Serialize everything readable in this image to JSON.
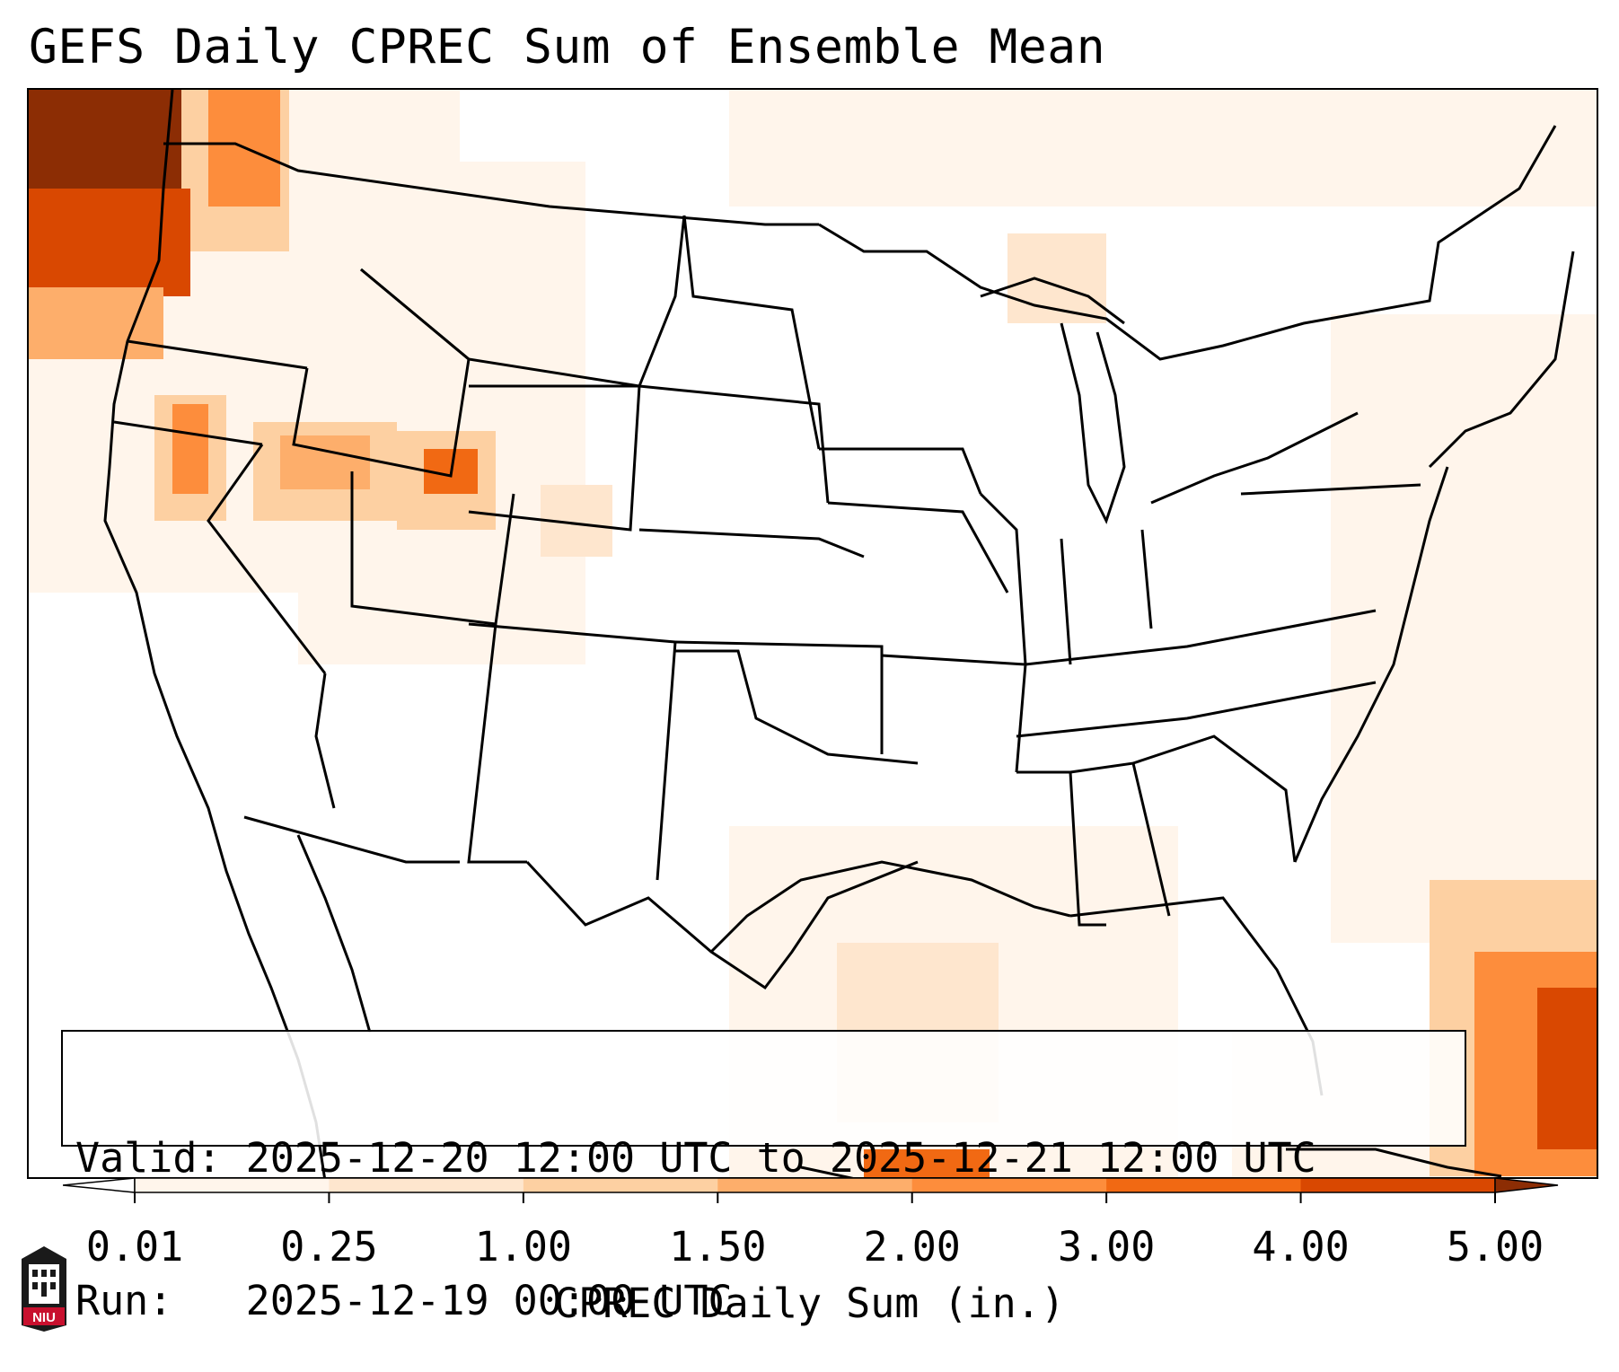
{
  "title": "GEFS Daily CPREC Sum of Ensemble Mean",
  "info": {
    "valid_label": "Valid:",
    "valid_value": "2025-12-20 12:00 UTC to 2025-12-21 12:00 UTC",
    "run_label": "Run:",
    "run_value": "2025-12-19 00:00 UTC"
  },
  "colorbar": {
    "label": "CPREC Daily Sum (in.)",
    "ticks": [
      "0.01",
      "0.25",
      "1.00",
      "1.50",
      "2.00",
      "3.00",
      "4.00",
      "5.00"
    ],
    "colors": [
      "#fff5eb",
      "#fee6ce",
      "#fdd0a2",
      "#fdae6b",
      "#fd8d3c",
      "#f16913",
      "#d94801"
    ],
    "under_color": "#ffffff",
    "over_color": "#8c2d04",
    "extend": "both"
  },
  "logo": {
    "text": "NIU",
    "color": "#c8102e"
  }
}
